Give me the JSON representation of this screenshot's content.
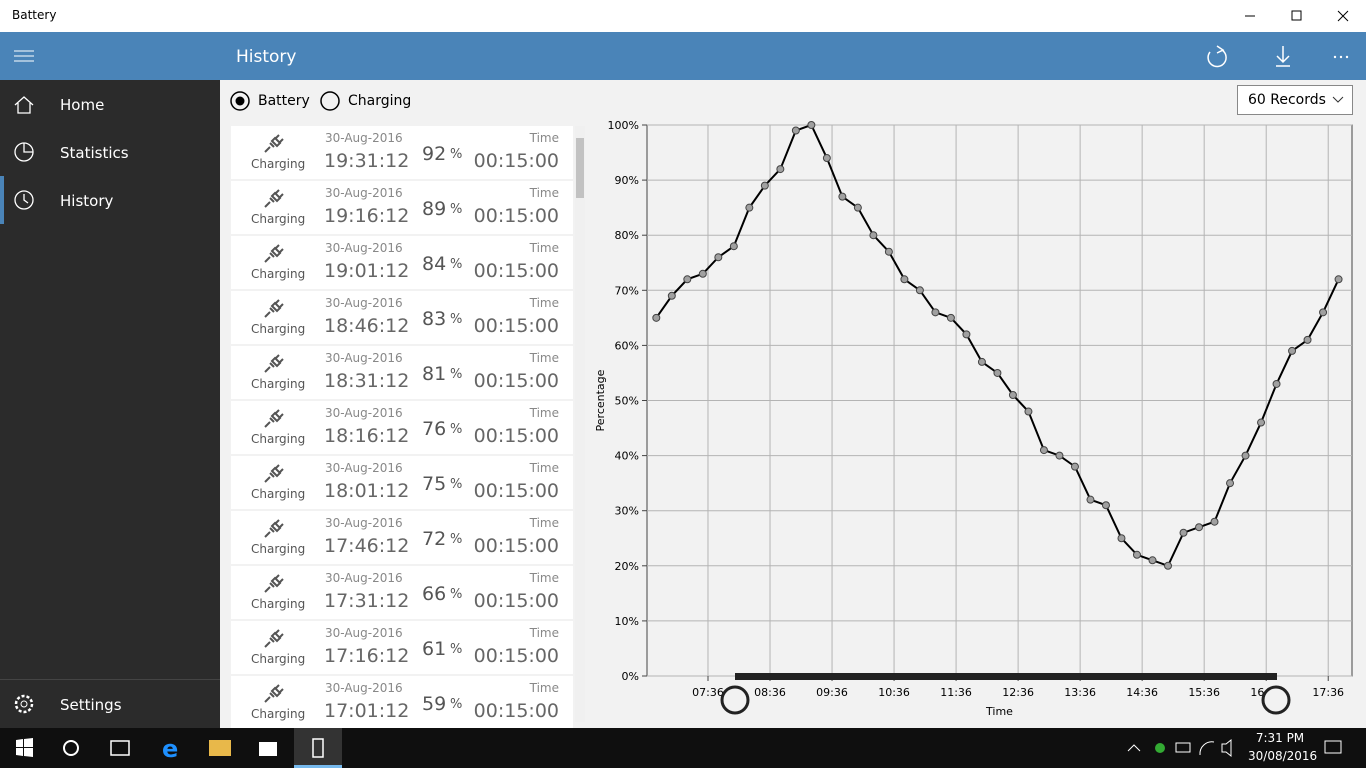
{
  "window": {
    "title": "Battery"
  },
  "header": {
    "title": "History"
  },
  "nav": [
    {
      "label": "Home"
    },
    {
      "label": "Statistics"
    },
    {
      "label": "History"
    },
    {
      "label": "Settings"
    }
  ],
  "filters": {
    "options": [
      "Battery",
      "Charging"
    ],
    "selected": 0,
    "records": "60 Records"
  },
  "records": [
    {
      "status": "Charging",
      "date": "30-Aug-2016",
      "time": "19:31:12",
      "percent": 92,
      "unit": "%",
      "duration_label": "Time",
      "duration": "00:15:00"
    },
    {
      "status": "Charging",
      "date": "30-Aug-2016",
      "time": "19:16:12",
      "percent": 89,
      "unit": "%",
      "duration_label": "Time",
      "duration": "00:15:00"
    },
    {
      "status": "Charging",
      "date": "30-Aug-2016",
      "time": "19:01:12",
      "percent": 84,
      "unit": "%",
      "duration_label": "Time",
      "duration": "00:15:00"
    },
    {
      "status": "Charging",
      "date": "30-Aug-2016",
      "time": "18:46:12",
      "percent": 83,
      "unit": "%",
      "duration_label": "Time",
      "duration": "00:15:00"
    },
    {
      "status": "Charging",
      "date": "30-Aug-2016",
      "time": "18:31:12",
      "percent": 81,
      "unit": "%",
      "duration_label": "Time",
      "duration": "00:15:00"
    },
    {
      "status": "Charging",
      "date": "30-Aug-2016",
      "time": "18:16:12",
      "percent": 76,
      "unit": "%",
      "duration_label": "Time",
      "duration": "00:15:00"
    },
    {
      "status": "Charging",
      "date": "30-Aug-2016",
      "time": "18:01:12",
      "percent": 75,
      "unit": "%",
      "duration_label": "Time",
      "duration": "00:15:00"
    },
    {
      "status": "Charging",
      "date": "30-Aug-2016",
      "time": "17:46:12",
      "percent": 72,
      "unit": "%",
      "duration_label": "Time",
      "duration": "00:15:00"
    },
    {
      "status": "Charging",
      "date": "30-Aug-2016",
      "time": "17:31:12",
      "percent": 66,
      "unit": "%",
      "duration_label": "Time",
      "duration": "00:15:00"
    },
    {
      "status": "Charging",
      "date": "30-Aug-2016",
      "time": "17:16:12",
      "percent": 61,
      "unit": "%",
      "duration_label": "Time",
      "duration": "00:15:00"
    },
    {
      "status": "Charging",
      "date": "30-Aug-2016",
      "time": "17:01:12",
      "percent": 59,
      "unit": "%",
      "duration_label": "Time",
      "duration": "00:15:00"
    }
  ],
  "chart_data": {
    "type": "line",
    "x_label": "Time",
    "y_label": "Percentage",
    "color": "#000000",
    "marker_color": "#a0a0a0",
    "grid": true,
    "x": [
      "06:46",
      "07:01",
      "07:16",
      "07:31",
      "07:46",
      "08:01",
      "08:16",
      "08:31",
      "08:46",
      "09:01",
      "09:16",
      "09:31",
      "09:46",
      "10:01",
      "10:16",
      "10:31",
      "10:46",
      "11:01",
      "11:16",
      "11:31",
      "11:46",
      "12:01",
      "12:16",
      "12:31",
      "12:46",
      "13:01",
      "13:16",
      "13:31",
      "13:46",
      "14:01",
      "14:16",
      "14:31",
      "14:46",
      "15:01",
      "15:16",
      "15:31",
      "15:46",
      "16:01",
      "16:16",
      "16:31",
      "16:46",
      "17:01",
      "17:16",
      "17:31",
      "17:46"
    ],
    "values": [
      65,
      69,
      72,
      73,
      76,
      78,
      85,
      89,
      92,
      99,
      100,
      94,
      87,
      85,
      80,
      77,
      72,
      70,
      66,
      65,
      62,
      57,
      55,
      51,
      48,
      41,
      40,
      38,
      32,
      31,
      25,
      22,
      21,
      20,
      26,
      27,
      28,
      35,
      40,
      46,
      53,
      59,
      61,
      66,
      72
    ],
    "xlim": [
      "06:37",
      "17:59"
    ],
    "xticks": [
      "07:36",
      "08:36",
      "09:36",
      "10:36",
      "11:36",
      "12:36",
      "13:36",
      "14:36",
      "15:36",
      "16:36",
      "17:36"
    ],
    "ylim": [
      0,
      100
    ],
    "yticks": [
      {
        "value": 0,
        "label": "0%"
      },
      {
        "value": 10,
        "label": "10%"
      },
      {
        "value": 20,
        "label": "20%"
      },
      {
        "value": 30,
        "label": "30%"
      },
      {
        "value": 40,
        "label": "40%"
      },
      {
        "value": 50,
        "label": "50%"
      },
      {
        "value": 60,
        "label": "60%"
      },
      {
        "value": 70,
        "label": "70%"
      },
      {
        "value": 80,
        "label": "80%"
      },
      {
        "value": 90,
        "label": "90%"
      },
      {
        "value": 100,
        "label": "100%"
      }
    ]
  },
  "taskbar": {
    "time": "7:31 PM",
    "date": "30/08/2016"
  }
}
